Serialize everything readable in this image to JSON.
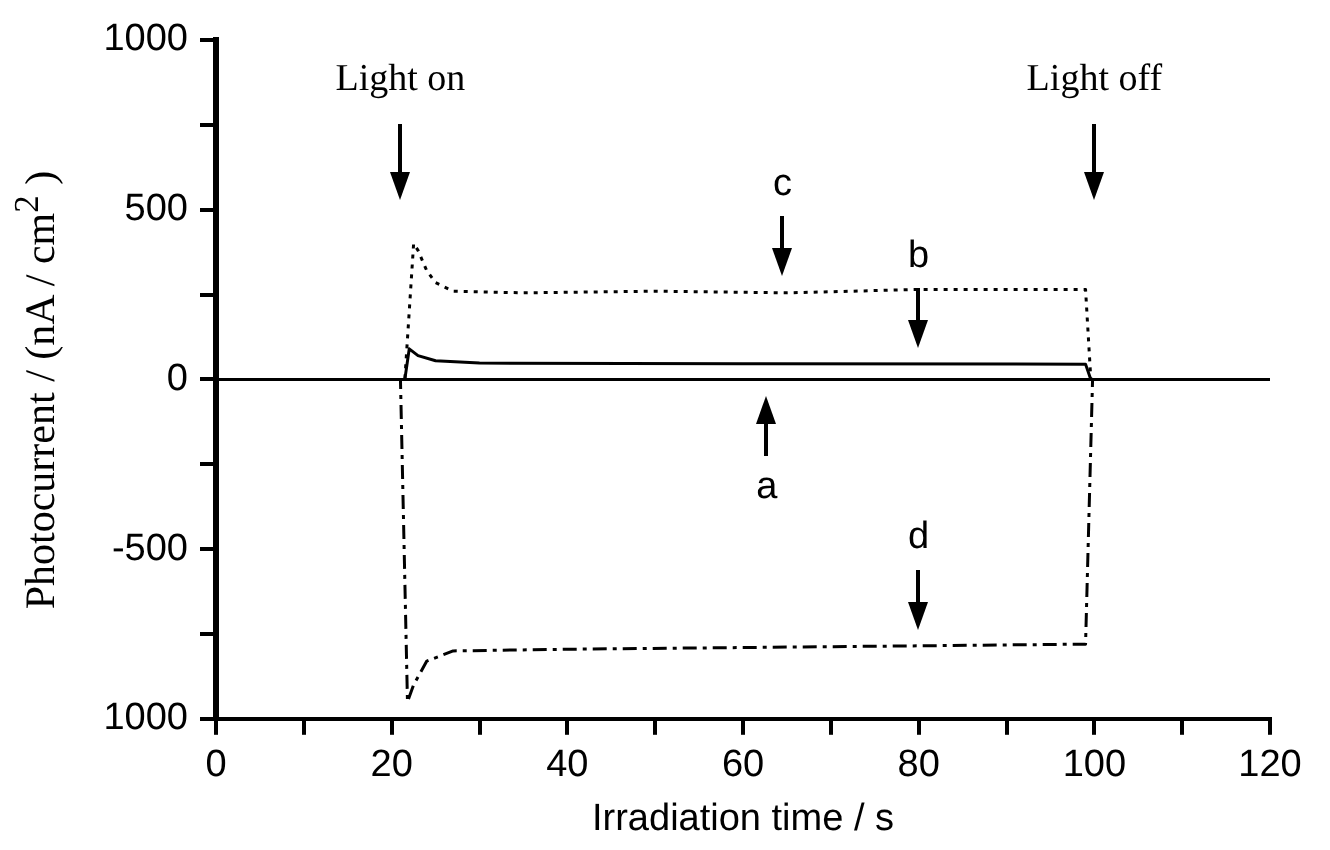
{
  "chart_data": {
    "type": "line",
    "xlabel": "Irradiation time / s",
    "ylabel": "Photocurrent / (nA / cm$^{2}$ )",
    "xlim": [
      0,
      120
    ],
    "xticks": [
      0,
      {
        "value": 10,
        "label": null
      },
      20,
      {
        "value": 30,
        "label": null
      },
      40,
      {
        "value": 50,
        "label": null
      },
      60,
      {
        "value": 70,
        "label": null
      },
      80,
      {
        "value": 90,
        "label": null
      },
      100,
      {
        "value": 110,
        "label": null
      },
      120
    ],
    "ylim": [
      -1000,
      1000
    ],
    "yticks": [
      {
        "value": -1000,
        "label": "1000"
      },
      {
        "value": -750,
        "label": null
      },
      -500,
      {
        "value": -250,
        "label": null
      },
      0,
      {
        "value": 250,
        "label": null
      },
      500,
      {
        "value": 750,
        "label": null
      },
      1000
    ],
    "grid": false,
    "legend": false,
    "marker": "none",
    "series": [
      {
        "color": "#000000",
        "line_style": "solid",
        "x": [
          0,
          120
        ],
        "values": [
          0,
          0
        ]
      },
      {
        "color": "#000000",
        "line_style": "solid",
        "x": [
          0,
          21.5,
          22,
          23,
          25,
          30,
          60,
          99,
          99.6,
          100
        ],
        "values": [
          0,
          0,
          90,
          70,
          55,
          48,
          46,
          45,
          0,
          0
        ]
      },
      {
        "color": "#000000",
        "line_style": "dotted",
        "x": [
          0,
          21.5,
          22.5,
          23,
          24,
          25,
          27,
          35,
          50,
          65,
          80,
          99,
          99.6,
          100
        ],
        "values": [
          0,
          0,
          400,
          380,
          320,
          285,
          260,
          255,
          260,
          255,
          265,
          265,
          0,
          0
        ]
      },
      {
        "color": "#000000",
        "line_style": "dashed",
        "x": [
          0,
          21,
          21.8,
          22.5,
          24,
          27,
          40,
          60,
          80,
          99,
          99.8,
          100
        ],
        "values": [
          0,
          0,
          -950,
          -900,
          -830,
          -800,
          -795,
          -790,
          -785,
          -780,
          0,
          0
        ]
      }
    ],
    "annotations": [
      {
        "text": "Light on",
        "x": 21
      },
      {
        "text": "Light off",
        "x": 100
      },
      {
        "text": "c",
        "x": 64.5,
        "y": 257
      },
      {
        "text": "b",
        "x": 80,
        "y": 45
      },
      {
        "text": "a",
        "x": 62.7,
        "y": 0
      },
      {
        "text": "d",
        "x": 80,
        "y": -785
      }
    ]
  }
}
